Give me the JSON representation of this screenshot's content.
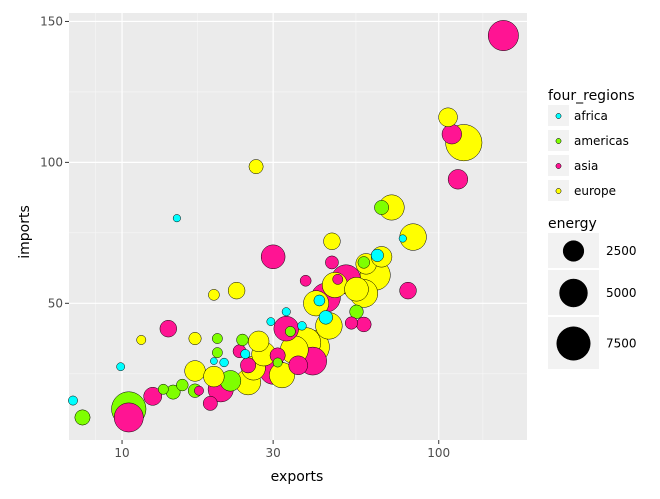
{
  "chart_data": {
    "type": "scatter",
    "xlabel": "exports",
    "ylabel": "imports",
    "x_scale": "log10",
    "x_ticks": [
      10,
      30,
      100
    ],
    "x_tick_labels": [
      "10",
      "30",
      "100"
    ],
    "y_ticks": [
      50,
      100,
      150
    ],
    "y_tick_labels": [
      "50",
      "100",
      "150"
    ],
    "xlim": [
      6.8,
      190
    ],
    "ylim": [
      1.5,
      153
    ],
    "grid": true,
    "legend_color": {
      "title": "four_regions",
      "entries": [
        {
          "label": "africa",
          "color": "#00FFFF"
        },
        {
          "label": "americas",
          "color": "#7FFF00"
        },
        {
          "label": "asia",
          "color": "#FF1493"
        },
        {
          "label": "europe",
          "color": "#FFFF00"
        }
      ]
    },
    "legend_size": {
      "title": "energy",
      "entries": [
        {
          "label": "2500",
          "value": 2500
        },
        {
          "label": "5000",
          "value": 5000
        },
        {
          "label": "7500",
          "value": 7500
        }
      ]
    },
    "series": [
      {
        "name": "africa",
        "color": "#00FFFF",
        "points": [
          {
            "x": 7.0,
            "y": 15.5,
            "energy": 300
          },
          {
            "x": 9.9,
            "y": 27.5,
            "energy": 200
          },
          {
            "x": 14.9,
            "y": 80.2,
            "energy": 150
          },
          {
            "x": 19.5,
            "y": 29.5,
            "energy": 120
          },
          {
            "x": 21,
            "y": 29,
            "energy": 250
          },
          {
            "x": 24.5,
            "y": 32,
            "energy": 300
          },
          {
            "x": 29.5,
            "y": 43.5,
            "energy": 200
          },
          {
            "x": 33,
            "y": 47,
            "energy": 220
          },
          {
            "x": 37,
            "y": 42,
            "energy": 250
          },
          {
            "x": 42,
            "y": 51,
            "energy": 500
          },
          {
            "x": 44,
            "y": 45,
            "energy": 900
          },
          {
            "x": 64,
            "y": 67,
            "energy": 700
          },
          {
            "x": 77,
            "y": 73,
            "energy": 150
          }
        ]
      },
      {
        "name": "americas",
        "color": "#7FFF00",
        "points": [
          {
            "x": 7.5,
            "y": 9.5,
            "energy": 1200
          },
          {
            "x": 13.5,
            "y": 19.5,
            "energy": 400
          },
          {
            "x": 14.5,
            "y": 18.5,
            "energy": 1000
          },
          {
            "x": 15.5,
            "y": 21,
            "energy": 600
          },
          {
            "x": 17,
            "y": 19,
            "energy": 900
          },
          {
            "x": 20,
            "y": 37.5,
            "energy": 400
          },
          {
            "x": 20,
            "y": 32.5,
            "energy": 400
          },
          {
            "x": 24,
            "y": 37,
            "energy": 600
          },
          {
            "x": 22,
            "y": 22.5,
            "energy": 2500
          },
          {
            "x": 10.5,
            "y": 12.5,
            "energy": 8000
          },
          {
            "x": 31,
            "y": 29,
            "energy": 300
          },
          {
            "x": 34,
            "y": 40,
            "energy": 400
          },
          {
            "x": 55,
            "y": 47,
            "energy": 900
          },
          {
            "x": 58,
            "y": 64.5,
            "energy": 600
          },
          {
            "x": 66,
            "y": 84,
            "energy": 1000
          }
        ]
      },
      {
        "name": "asia",
        "color": "#FF1493",
        "points": [
          {
            "x": 10.5,
            "y": 9.5,
            "energy": 5500
          },
          {
            "x": 12.5,
            "y": 17,
            "energy": 1800
          },
          {
            "x": 14,
            "y": 41,
            "energy": 1500
          },
          {
            "x": 17.5,
            "y": 19,
            "energy": 300
          },
          {
            "x": 19,
            "y": 14.5,
            "energy": 1000
          },
          {
            "x": 20.5,
            "y": 19.5,
            "energy": 4000
          },
          {
            "x": 23.5,
            "y": 33,
            "energy": 800
          },
          {
            "x": 25,
            "y": 28,
            "energy": 1200
          },
          {
            "x": 30,
            "y": 26,
            "energy": 4500
          },
          {
            "x": 30,
            "y": 66.5,
            "energy": 3500
          },
          {
            "x": 31,
            "y": 31.5,
            "energy": 1200
          },
          {
            "x": 33,
            "y": 41,
            "energy": 3800
          },
          {
            "x": 36,
            "y": 28,
            "energy": 2000
          },
          {
            "x": 38,
            "y": 58,
            "energy": 500
          },
          {
            "x": 40,
            "y": 29.5,
            "energy": 5000
          },
          {
            "x": 44,
            "y": 52,
            "energy": 5500
          },
          {
            "x": 46,
            "y": 64.5,
            "energy": 800
          },
          {
            "x": 48,
            "y": 58.5,
            "energy": 400
          },
          {
            "x": 51,
            "y": 58.5,
            "energy": 5500
          },
          {
            "x": 53,
            "y": 43,
            "energy": 700
          },
          {
            "x": 58,
            "y": 42.5,
            "energy": 1100
          },
          {
            "x": 80,
            "y": 54.5,
            "energy": 1500
          },
          {
            "x": 110,
            "y": 110,
            "energy": 2200
          },
          {
            "x": 115,
            "y": 94,
            "energy": 2200
          },
          {
            "x": 160,
            "y": 145,
            "energy": 6000
          }
        ]
      },
      {
        "name": "europe",
        "color": "#FFFF00",
        "points": [
          {
            "x": 11.5,
            "y": 37,
            "energy": 300
          },
          {
            "x": 17,
            "y": 37.5,
            "energy": 700
          },
          {
            "x": 19.5,
            "y": 53,
            "energy": 500
          },
          {
            "x": 17,
            "y": 26,
            "energy": 2500
          },
          {
            "x": 19.5,
            "y": 24,
            "energy": 2500
          },
          {
            "x": 23,
            "y": 54.5,
            "energy": 1500
          },
          {
            "x": 26.5,
            "y": 98.5,
            "energy": 1000
          },
          {
            "x": 25,
            "y": 22,
            "energy": 4000
          },
          {
            "x": 27,
            "y": 36.5,
            "energy": 2500
          },
          {
            "x": 26,
            "y": 27,
            "energy": 3500
          },
          {
            "x": 28,
            "y": 32,
            "energy": 3500
          },
          {
            "x": 32,
            "y": 24.5,
            "energy": 4000
          },
          {
            "x": 35,
            "y": 33.5,
            "energy": 5000
          },
          {
            "x": 38,
            "y": 36,
            "energy": 6000
          },
          {
            "x": 40,
            "y": 34.5,
            "energy": 7500
          },
          {
            "x": 41,
            "y": 50,
            "energy": 4000
          },
          {
            "x": 45,
            "y": 42,
            "energy": 4500
          },
          {
            "x": 46,
            "y": 72,
            "energy": 1500
          },
          {
            "x": 47,
            "y": 56.5,
            "energy": 4000
          },
          {
            "x": 55,
            "y": 55,
            "energy": 3500
          },
          {
            "x": 58,
            "y": 53.5,
            "energy": 5000
          },
          {
            "x": 59,
            "y": 64,
            "energy": 2500
          },
          {
            "x": 63,
            "y": 60,
            "energy": 6000
          },
          {
            "x": 66,
            "y": 66.5,
            "energy": 2500
          },
          {
            "x": 71,
            "y": 84,
            "energy": 4000
          },
          {
            "x": 83,
            "y": 73.5,
            "energy": 4500
          },
          {
            "x": 107,
            "y": 116,
            "energy": 2000
          },
          {
            "x": 120,
            "y": 107,
            "energy": 9000
          }
        ]
      }
    ]
  }
}
